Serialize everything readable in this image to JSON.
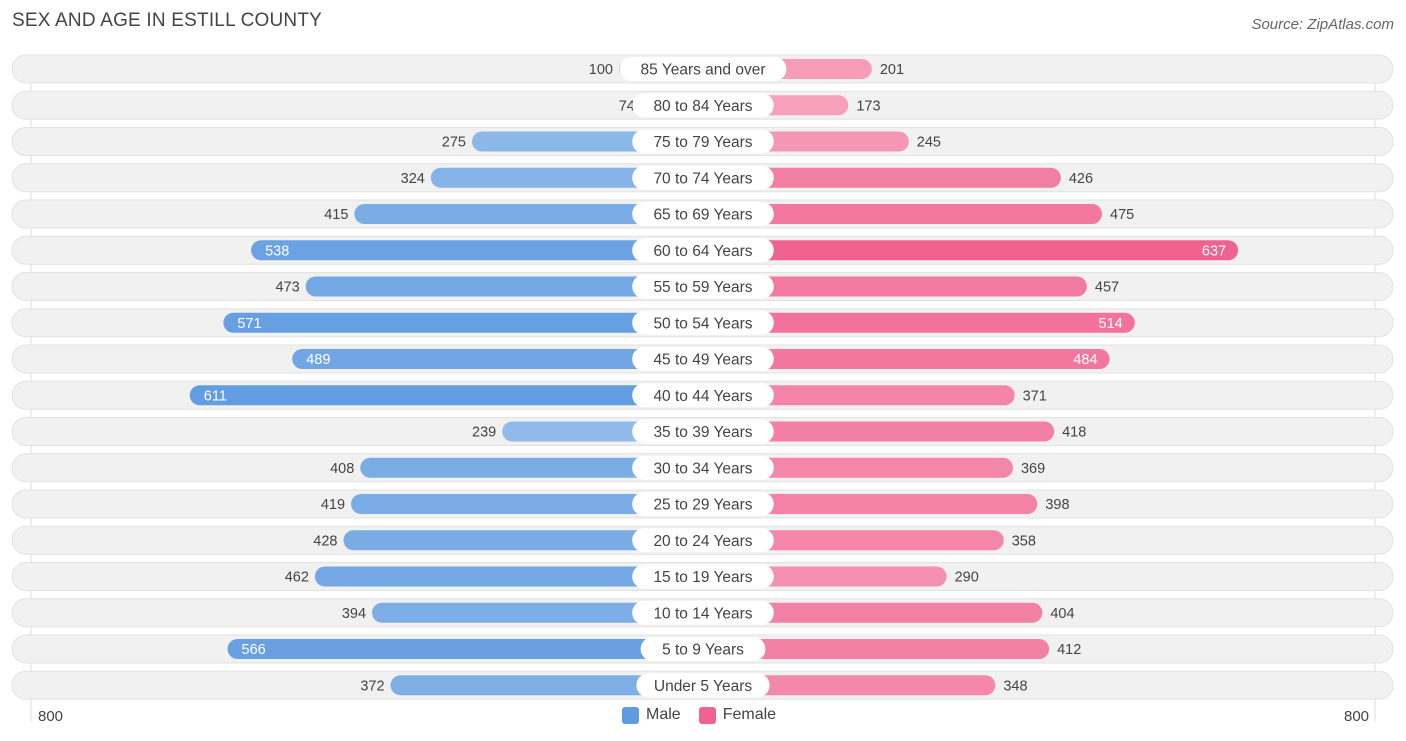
{
  "title": "SEX AND AGE IN ESTILL COUNTY",
  "source": "Source: ZipAtlas.com",
  "colors": {
    "male_light": "#a7c8ee",
    "male_dark": "#5f9be0",
    "female_light": "#f8b0c8",
    "female_dark": "#f0628f",
    "row_bg": "#f1f1f1"
  },
  "axis": {
    "left_label": "800",
    "right_label": "800"
  },
  "legend": {
    "male": "Male",
    "female": "Female"
  },
  "chart_data": {
    "type": "bar",
    "orientation": "horizontal-diverging",
    "title": "SEX AND AGE IN ESTILL COUNTY",
    "xlim": [
      -800,
      800
    ],
    "categories": [
      "85 Years and over",
      "80 to 84 Years",
      "75 to 79 Years",
      "70 to 74 Years",
      "65 to 69 Years",
      "60 to 64 Years",
      "55 to 59 Years",
      "50 to 54 Years",
      "45 to 49 Years",
      "40 to 44 Years",
      "35 to 39 Years",
      "30 to 34 Years",
      "25 to 29 Years",
      "20 to 24 Years",
      "15 to 19 Years",
      "10 to 14 Years",
      "5 to 9 Years",
      "Under 5 Years"
    ],
    "series": [
      {
        "name": "Male",
        "values": [
          100,
          74,
          275,
          324,
          415,
          538,
          473,
          571,
          489,
          611,
          239,
          408,
          419,
          428,
          462,
          394,
          566,
          372
        ]
      },
      {
        "name": "Female",
        "values": [
          201,
          173,
          245,
          426,
          475,
          637,
          457,
          514,
          484,
          371,
          418,
          369,
          398,
          358,
          290,
          404,
          412,
          348
        ]
      }
    ],
    "legend_position": "bottom-center"
  }
}
